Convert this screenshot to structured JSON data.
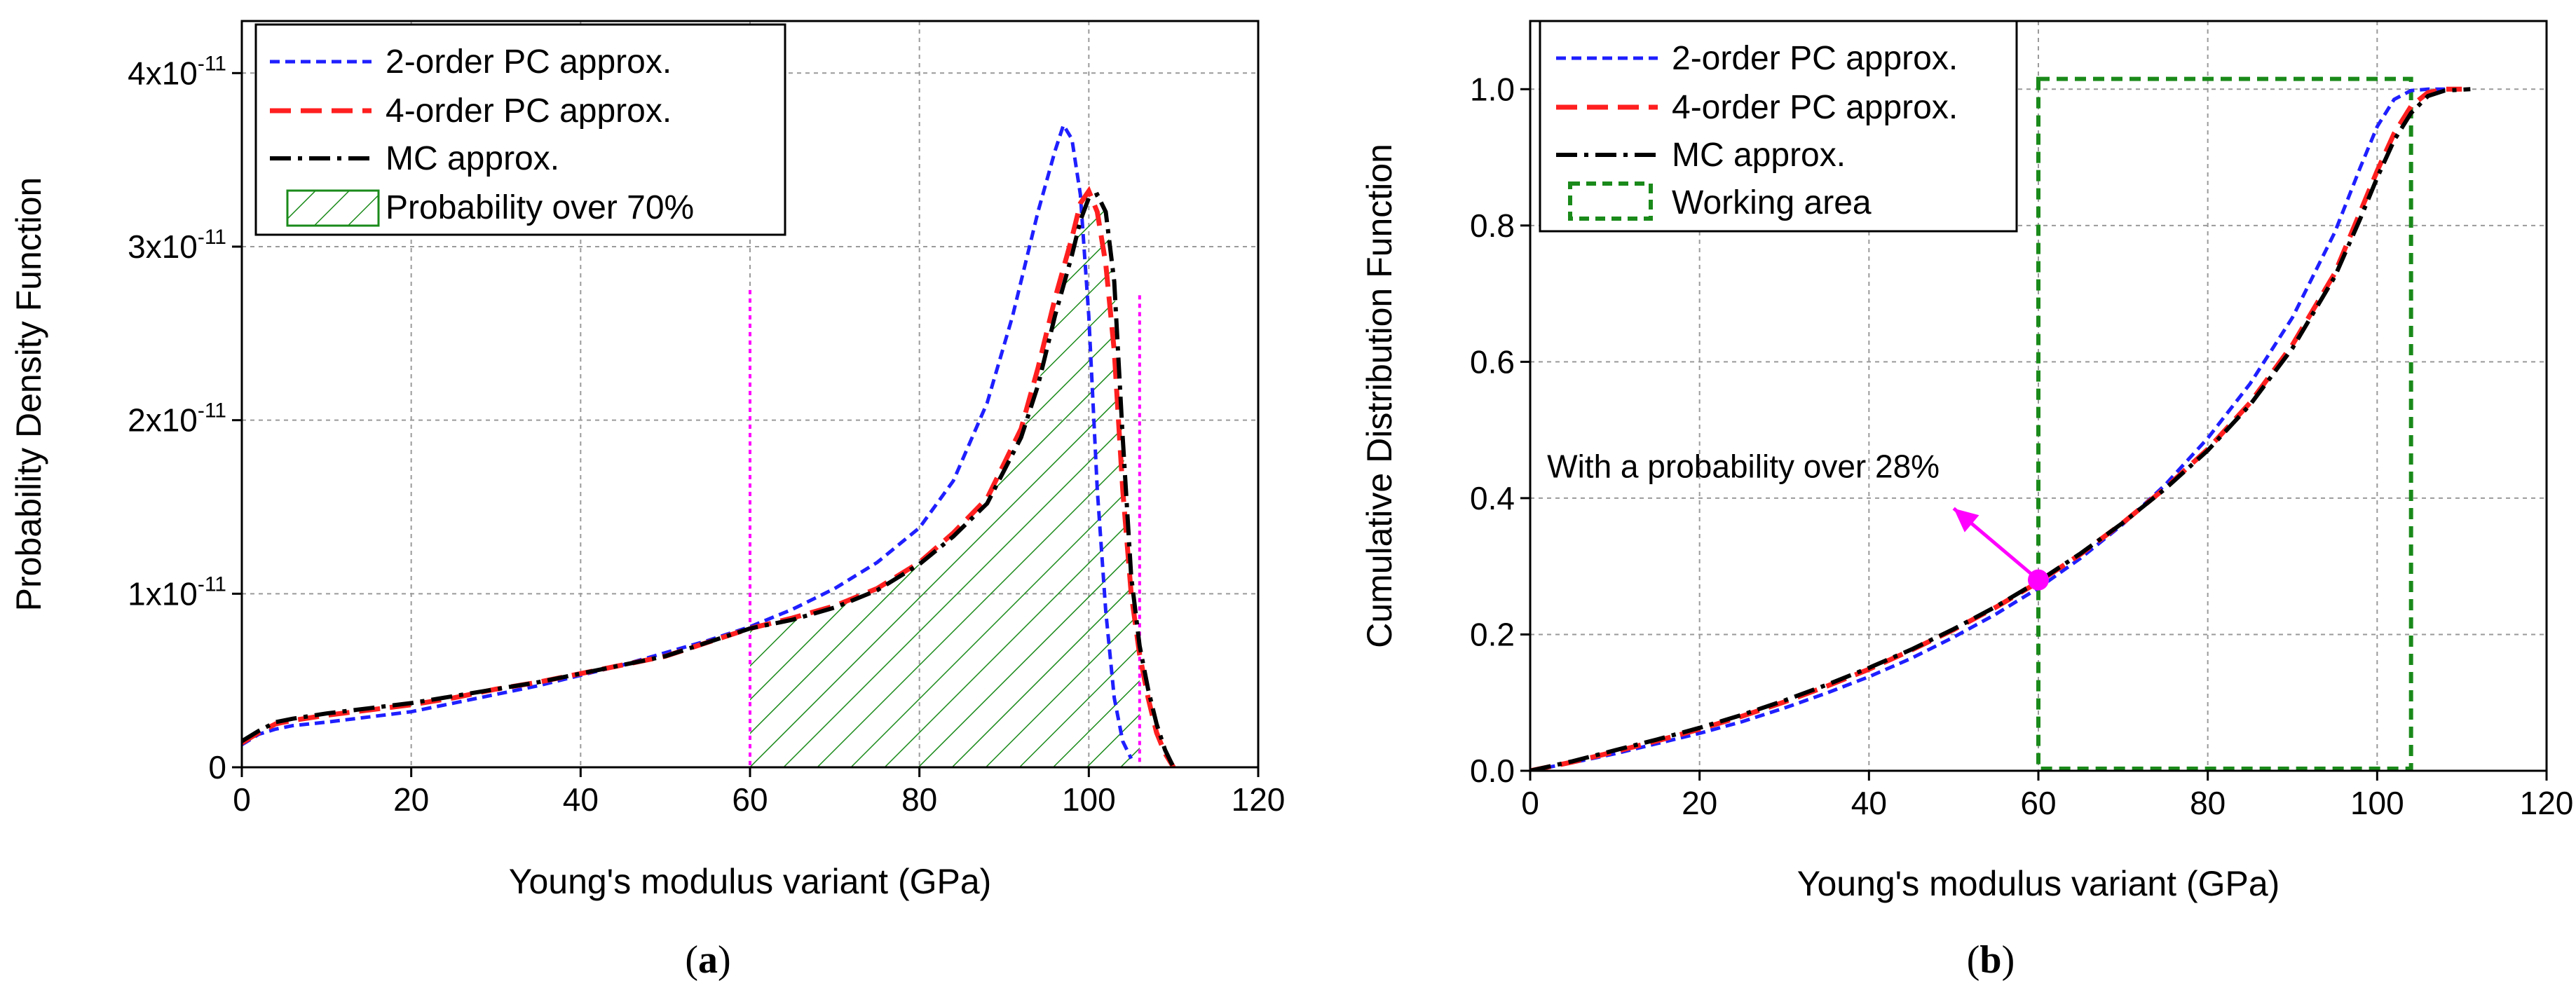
{
  "chart_data": [
    {
      "panel": "a",
      "type": "line",
      "caption_open": "(",
      "caption_letter": "a",
      "caption_close": ")",
      "xlabel": "Young's modulus variant (GPa)",
      "ylabel": "Probability Density Function",
      "xlim": [
        0,
        120
      ],
      "ylim": [
        0,
        4.3
      ],
      "y_unit_exponent": -11,
      "xticks": [
        0,
        20,
        40,
        60,
        80,
        100,
        120
      ],
      "yticks": [
        {
          "value": 0,
          "base": "0",
          "exp": ""
        },
        {
          "value": 1,
          "base": "1x10",
          "exp": "-11"
        },
        {
          "value": 2,
          "base": "2x10",
          "exp": "-11"
        },
        {
          "value": 3,
          "base": "3x10",
          "exp": "-11"
        },
        {
          "value": 4,
          "base": "4x10",
          "exp": "-11"
        }
      ],
      "grid": true,
      "legend_position": "top-left",
      "legend": [
        {
          "label": "2-order PC approx.",
          "series": "pc2"
        },
        {
          "label": "4-order PC approx.",
          "series": "pc4"
        },
        {
          "label": "MC approx.",
          "series": "mc"
        },
        {
          "label": "Probability over 70%",
          "series": "shade"
        }
      ],
      "series": [
        {
          "name": "2-order PC approx.",
          "key": "pc2",
          "color": "#1f1fff",
          "x": [
            0,
            2,
            4,
            6,
            10,
            15,
            20,
            25,
            30,
            35,
            40,
            45,
            50,
            55,
            60,
            65,
            70,
            75,
            80,
            84,
            88,
            91,
            94,
            96,
            97,
            98,
            99,
            100,
            101,
            102,
            103,
            104,
            105
          ],
          "y": [
            0.13,
            0.19,
            0.22,
            0.24,
            0.26,
            0.29,
            0.32,
            0.37,
            0.42,
            0.47,
            0.53,
            0.59,
            0.66,
            0.73,
            0.81,
            0.91,
            1.03,
            1.18,
            1.38,
            1.65,
            2.1,
            2.6,
            3.2,
            3.55,
            3.7,
            3.62,
            3.3,
            2.6,
            1.6,
            0.9,
            0.4,
            0.15,
            0.05
          ]
        },
        {
          "name": "4-order PC approx.",
          "key": "pc4",
          "color": "#ff1f1f",
          "x": [
            0,
            2,
            4,
            6,
            10,
            15,
            20,
            25,
            30,
            35,
            40,
            45,
            50,
            55,
            60,
            65,
            70,
            75,
            80,
            84,
            88,
            92,
            94,
            96,
            98,
            99,
            100,
            101,
            102,
            103,
            104,
            105,
            106,
            107,
            108,
            109,
            110
          ],
          "y": [
            0.14,
            0.2,
            0.25,
            0.27,
            0.3,
            0.33,
            0.36,
            0.4,
            0.45,
            0.49,
            0.54,
            0.59,
            0.64,
            0.72,
            0.8,
            0.86,
            0.93,
            1.03,
            1.18,
            1.35,
            1.55,
            1.95,
            2.3,
            2.7,
            3.05,
            3.25,
            3.32,
            3.2,
            2.9,
            2.4,
            1.6,
            1.0,
            0.65,
            0.4,
            0.2,
            0.08,
            0.0
          ]
        },
        {
          "name": "MC approx.",
          "key": "mc",
          "color": "#000000",
          "x": [
            0,
            2,
            4,
            6,
            10,
            15,
            20,
            25,
            30,
            35,
            40,
            45,
            50,
            55,
            60,
            65,
            70,
            75,
            80,
            84,
            88,
            92,
            94,
            96,
            98,
            99,
            100,
            101,
            102,
            103,
            104,
            105,
            106,
            107,
            108,
            109,
            110
          ],
          "y": [
            0.15,
            0.21,
            0.26,
            0.28,
            0.31,
            0.34,
            0.37,
            0.41,
            0.45,
            0.49,
            0.54,
            0.59,
            0.64,
            0.72,
            0.8,
            0.85,
            0.92,
            1.02,
            1.17,
            1.33,
            1.52,
            1.9,
            2.2,
            2.6,
            2.95,
            3.15,
            3.28,
            3.3,
            3.2,
            2.8,
            1.9,
            1.1,
            0.7,
            0.45,
            0.25,
            0.1,
            0.0
          ]
        }
      ],
      "shaded_region": {
        "x_from": 60,
        "x_to": 106,
        "color": "#1a8a1a"
      },
      "vertical_markers": [
        {
          "x": 60,
          "y_top": 2.75,
          "color": "#ff00ff"
        },
        {
          "x": 106,
          "y_top": 2.72,
          "color": "#ff00ff"
        }
      ]
    },
    {
      "panel": "b",
      "type": "line",
      "caption_open": "(",
      "caption_letter": "b",
      "caption_close": ")",
      "xlabel": "Young's modulus variant (GPa)",
      "ylabel": "Cumulative Distribution Function",
      "xlim": [
        0,
        120
      ],
      "ylim": [
        0,
        1.1
      ],
      "xticks": [
        0,
        20,
        40,
        60,
        80,
        100,
        120
      ],
      "yticks": [
        "0.0",
        "0.2",
        "0.4",
        "0.6",
        "0.8",
        "1.0"
      ],
      "grid": true,
      "legend_position": "top-left",
      "legend": [
        {
          "label": "2-order PC approx.",
          "series": "pc2"
        },
        {
          "label": "4-order PC approx.",
          "series": "pc4"
        },
        {
          "label": "MC approx.",
          "series": "mc"
        },
        {
          "label": "Working area",
          "series": "box"
        }
      ],
      "series": [
        {
          "name": "2-order PC approx.",
          "key": "pc2",
          "color": "#1f1fff",
          "x": [
            0,
            5,
            10,
            15,
            20,
            25,
            30,
            35,
            40,
            45,
            50,
            55,
            60,
            65,
            70,
            75,
            80,
            85,
            90,
            95,
            98,
            100,
            102,
            104,
            106,
            108
          ],
          "y": [
            0.0,
            0.012,
            0.025,
            0.04,
            0.055,
            0.072,
            0.092,
            0.114,
            0.138,
            0.165,
            0.196,
            0.23,
            0.268,
            0.312,
            0.362,
            0.42,
            0.488,
            0.568,
            0.665,
            0.79,
            0.885,
            0.945,
            0.985,
            0.998,
            1.0,
            1.0
          ]
        },
        {
          "name": "4-order PC approx.",
          "key": "pc4",
          "color": "#ff1f1f",
          "x": [
            0,
            5,
            10,
            15,
            20,
            25,
            30,
            35,
            40,
            45,
            50,
            55,
            60,
            65,
            70,
            75,
            80,
            85,
            90,
            95,
            98,
            100,
            102,
            104,
            106,
            108,
            110
          ],
          "y": [
            0.0,
            0.013,
            0.028,
            0.044,
            0.061,
            0.08,
            0.101,
            0.124,
            0.149,
            0.177,
            0.207,
            0.24,
            0.277,
            0.318,
            0.364,
            0.415,
            0.472,
            0.54,
            0.625,
            0.73,
            0.82,
            0.88,
            0.935,
            0.975,
            0.995,
            1.0,
            1.0
          ]
        },
        {
          "name": "MC approx.",
          "key": "mc",
          "color": "#000000",
          "x": [
            0,
            5,
            10,
            15,
            20,
            25,
            30,
            35,
            40,
            45,
            50,
            55,
            60,
            65,
            70,
            75,
            80,
            85,
            90,
            95,
            98,
            100,
            102,
            104,
            106,
            108,
            111
          ],
          "y": [
            0.0,
            0.014,
            0.03,
            0.046,
            0.063,
            0.082,
            0.103,
            0.126,
            0.151,
            0.178,
            0.208,
            0.241,
            0.278,
            0.319,
            0.364,
            0.414,
            0.47,
            0.537,
            0.62,
            0.725,
            0.81,
            0.87,
            0.925,
            0.965,
            0.99,
            0.998,
            1.0
          ]
        }
      ],
      "working_area": {
        "x_from": 60,
        "x_to": 104,
        "y_from": 0.0,
        "y_to": 1.015,
        "color": "#1a8a1a"
      },
      "annotation": {
        "text": "With a probability over 28%",
        "point": {
          "x": 60,
          "y": 0.28
        },
        "arrow_to": {
          "x": 50,
          "y": 0.385
        },
        "text_at": {
          "x": 2,
          "y": 0.43
        },
        "color": "#ff00ff"
      }
    }
  ]
}
